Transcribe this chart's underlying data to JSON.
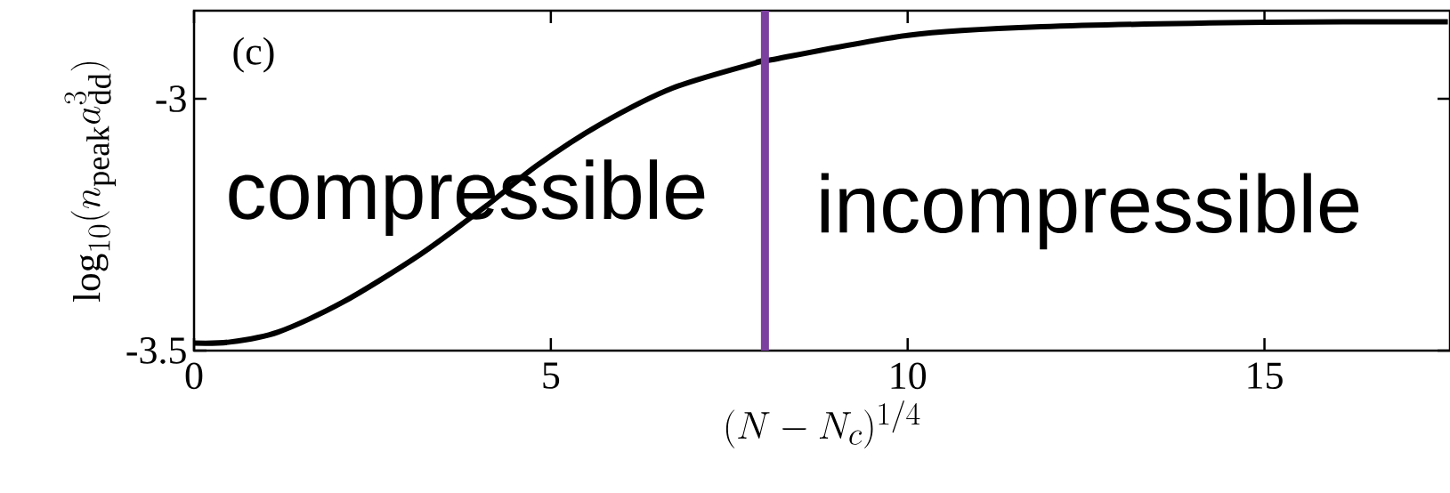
{
  "chart_data": {
    "type": "line",
    "xlabel": "(N-N_c)^{1/4}",
    "ylabel": "\\log_{10}(n_{\\mathrm{peak}}a_{\\mathrm{dd}}^3)",
    "x": [
      0,
      0.5,
      1.18,
      2.07,
      3.16,
      4.12,
      4.8,
      5.69,
      6.72,
      7.92,
      8.0,
      10.0,
      11.87,
      15,
      17.57
    ],
    "series": [
      {
        "color": "#000000",
        "values": [
          -3.485,
          -3.483,
          -3.463,
          -3.405,
          -3.31,
          -3.21,
          -3.133,
          -3.051,
          -2.978,
          -2.927,
          -2.925,
          -2.874,
          -2.857,
          -2.848,
          -2.847
        ]
      }
    ],
    "xlim": [
      0,
      17.6
    ],
    "ylim": [
      -3.5,
      -2.825
    ],
    "xticks": [
      0,
      5,
      10,
      15
    ],
    "yticks": [
      -3.5,
      -3
    ],
    "ref_lines": [
      {
        "axis": "x",
        "value": 8,
        "color": "#7b3fa0"
      }
    ],
    "annotations": [
      "(c)",
      "compressible",
      "incompressible"
    ],
    "grid": false,
    "marker": "none",
    "line_style": "solid"
  }
}
